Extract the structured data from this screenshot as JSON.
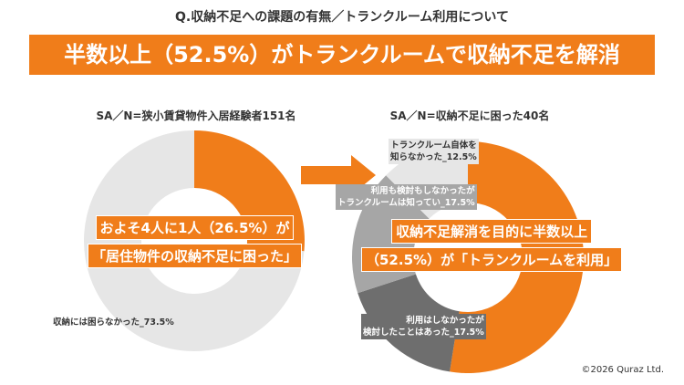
{
  "question": "Q.収納不足への課題の有無／トランクルーム利用について",
  "banner": "半数以上（52.5%）がトランクルームで収納不足を解消",
  "colors": {
    "orange": "#f07d1a",
    "light_gray": "#e6e6e6",
    "mid_gray": "#a6a6a6",
    "dark_gray": "#6e6e6e"
  },
  "chart_data": [
    {
      "type": "pie",
      "subtitle": "SA／N=狭小賃貸物件入居経験者151名",
      "center_text": [
        "およそ4人に1人（26.5%）が",
        "「居住物件の収納不足に困った」"
      ],
      "slices": [
        {
          "label": "",
          "value": 26.5,
          "color": "#f07d1a"
        },
        {
          "label": "収納には困らなかった_73.5%",
          "value": 73.5,
          "color": "#e6e6e6"
        }
      ]
    },
    {
      "type": "pie",
      "subtitle": "SA／N=収納不足に困った40名",
      "center_text": [
        "収納不足解消を目的に半数以上",
        "（52.5%）が「トランクルームを利用」"
      ],
      "slices": [
        {
          "label": "",
          "value": 52.5,
          "color": "#f07d1a"
        },
        {
          "label": [
            "利用はしなかったが",
            "検討したことはあった_17.5%"
          ],
          "value": 17.5,
          "color": "#6e6e6e"
        },
        {
          "label": [
            "利用も検討もしなかったが",
            "トランクルームは知ってい_17.5%"
          ],
          "value": 17.5,
          "color": "#a6a6a6"
        },
        {
          "label": [
            "トランクルーム自体を",
            "知らなかった_12.5%"
          ],
          "value": 12.5,
          "color": "#e6e6e6"
        }
      ]
    }
  ],
  "copyright": "©2026 Quraz Ltd."
}
